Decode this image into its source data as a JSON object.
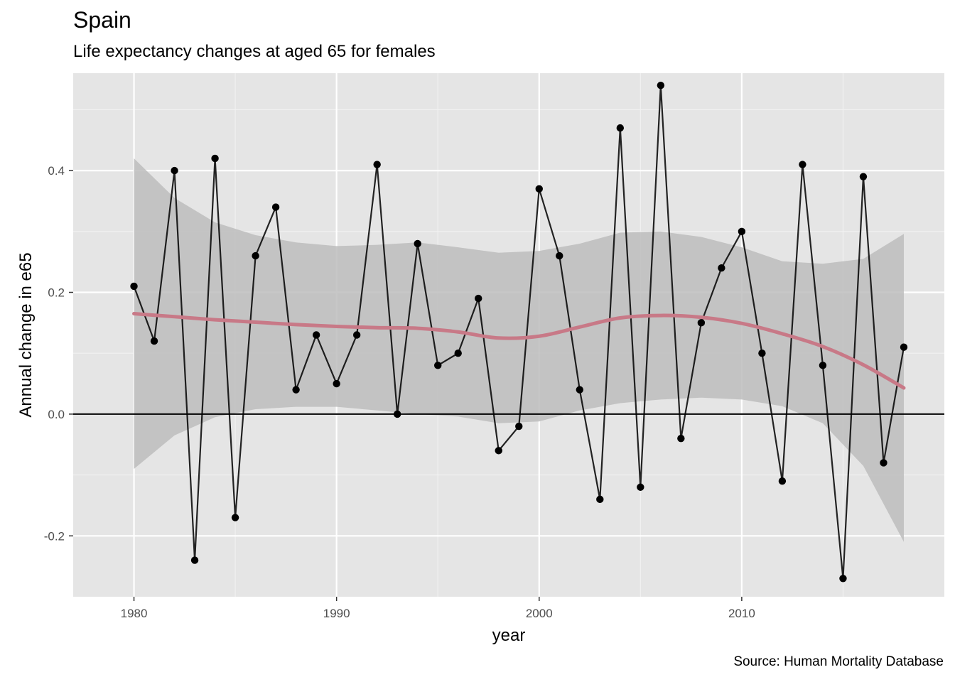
{
  "chart_data": {
    "type": "line",
    "title": "Spain",
    "subtitle": "Life expectancy changes at aged 65 for females",
    "caption": "Source: Human Mortality Database",
    "xlabel": "year",
    "ylabel": "Annual change in e65",
    "xlim": [
      1977,
      2020
    ],
    "ylim": [
      -0.3,
      0.56
    ],
    "x_ticks": [
      1980,
      1990,
      2000,
      2010
    ],
    "x_tick_labels": [
      "1980",
      "1990",
      "2000",
      "2010"
    ],
    "y_ticks": [
      -0.2,
      0.0,
      0.2,
      0.4
    ],
    "y_tick_labels": [
      "-0.2",
      "0.0",
      "0.2",
      "0.4"
    ],
    "grid": true,
    "reference_line_y": 0,
    "series": [
      {
        "type": "line+points",
        "color": "#000000",
        "x": [
          1980,
          1981,
          1982,
          1983,
          1984,
          1985,
          1986,
          1987,
          1988,
          1989,
          1990,
          1991,
          1992,
          1993,
          1994,
          1995,
          1996,
          1997,
          1998,
          1999,
          2000,
          2001,
          2002,
          2003,
          2004,
          2005,
          2006,
          2007,
          2008,
          2009,
          2010,
          2011,
          2012,
          2013,
          2014,
          2015,
          2016,
          2017,
          2018
        ],
        "y": [
          0.21,
          0.12,
          0.4,
          -0.24,
          0.42,
          -0.17,
          0.26,
          0.34,
          0.04,
          0.13,
          0.05,
          0.13,
          0.41,
          0.0,
          0.28,
          0.08,
          0.1,
          0.19,
          -0.06,
          -0.02,
          0.37,
          0.26,
          0.04,
          -0.14,
          0.47,
          -0.12,
          0.54,
          -0.04,
          0.15,
          0.24,
          0.3,
          0.1,
          -0.11,
          0.41,
          0.08,
          -0.27,
          0.39,
          -0.08,
          0.11
        ]
      },
      {
        "type": "smooth",
        "color": "#c87987",
        "band_color": "#bdbdbd",
        "x": [
          1980,
          1982,
          1984,
          1986,
          1988,
          1990,
          1992,
          1994,
          1996,
          1998,
          2000,
          2002,
          2004,
          2006,
          2008,
          2010,
          2012,
          2014,
          2016,
          2018
        ],
        "y": [
          0.165,
          0.16,
          0.155,
          0.151,
          0.147,
          0.144,
          0.142,
          0.141,
          0.135,
          0.125,
          0.128,
          0.143,
          0.158,
          0.162,
          0.159,
          0.149,
          0.132,
          0.111,
          0.081,
          0.043
        ],
        "lower": [
          -0.09,
          -0.035,
          -0.005,
          0.008,
          0.012,
          0.012,
          0.006,
          0.0,
          -0.004,
          -0.015,
          -0.012,
          0.006,
          0.018,
          0.024,
          0.027,
          0.024,
          0.013,
          -0.015,
          -0.085,
          -0.21
        ],
        "upper": [
          0.42,
          0.355,
          0.315,
          0.294,
          0.282,
          0.276,
          0.278,
          0.282,
          0.274,
          0.265,
          0.268,
          0.28,
          0.298,
          0.3,
          0.291,
          0.274,
          0.251,
          0.247,
          0.255,
          0.296
        ]
      }
    ]
  }
}
